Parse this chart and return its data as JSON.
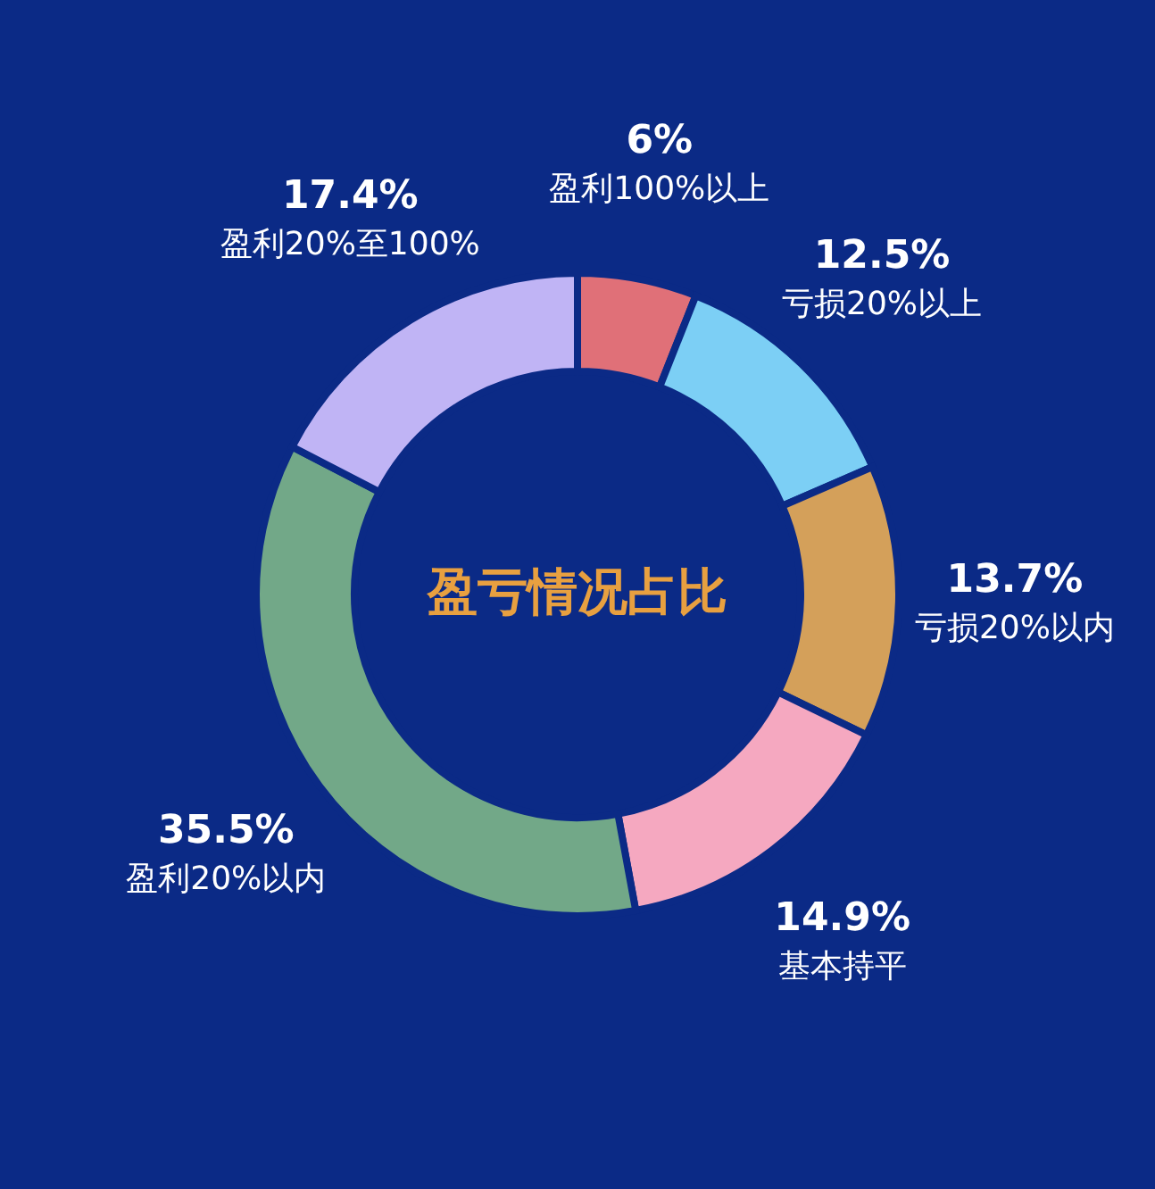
{
  "chart_data": {
    "type": "donut",
    "title": "盈亏情况占比",
    "categories": [
      "盈利100%以上",
      "亏损20%以上",
      "亏损20%以内",
      "基本持平",
      "盈利20%以内",
      "盈利20%至100%"
    ],
    "values": [
      6,
      12.5,
      13.7,
      14.9,
      35.5,
      17.4
    ],
    "value_labels": [
      "6%",
      "12.5%",
      "13.7%",
      "14.9%",
      "35.5%",
      "17.4%"
    ],
    "colors": [
      "#e07078",
      "#7ccff5",
      "#d4a05a",
      "#f5a8c0",
      "#72a888",
      "#c0b4f5"
    ]
  }
}
